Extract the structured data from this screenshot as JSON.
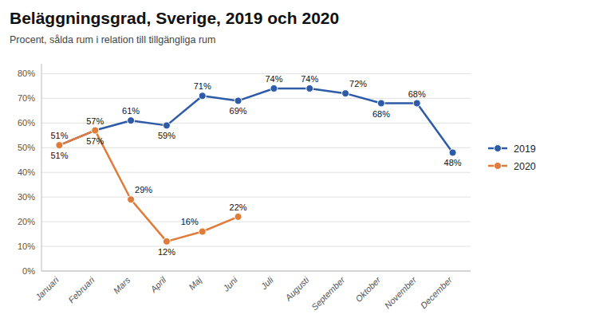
{
  "chart_data": {
    "type": "line",
    "title": "Beläggningsgrad, Sverige, 2019 och 2020",
    "subtitle": "Procent, sålda rum i relation till tillgängliga rum",
    "categories": [
      "Januari",
      "Februari",
      "Mars",
      "April",
      "Maj",
      "Juni",
      "Juli",
      "Augusti",
      "September",
      "Oktober",
      "November",
      "December"
    ],
    "series": [
      {
        "name": "2019",
        "color": "#2E5BA8",
        "values": [
          51,
          57,
          61,
          59,
          71,
          69,
          74,
          74,
          72,
          68,
          68,
          48
        ],
        "value_labels": [
          "51%",
          "57%",
          "61%",
          "59%",
          "71%",
          "69%",
          "74%",
          "74%",
          "72%",
          "68%",
          "68%",
          "48%"
        ]
      },
      {
        "name": "2020",
        "color": "#E07B39",
        "values": [
          51,
          57,
          29,
          12,
          16,
          22,
          null,
          null,
          null,
          null,
          null,
          null
        ],
        "value_labels": [
          "51%",
          "57%",
          "29%",
          "12%",
          "16%",
          "22%",
          null,
          null,
          null,
          null,
          null,
          null
        ]
      }
    ],
    "ylim": [
      0,
      84
    ],
    "yticks": [
      {
        "value": 0,
        "label": "0%"
      },
      {
        "value": 10,
        "label": "10%"
      },
      {
        "value": 20,
        "label": "20%"
      },
      {
        "value": 30,
        "label": "30%"
      },
      {
        "value": 40,
        "label": "40%"
      },
      {
        "value": 50,
        "label": "50%"
      },
      {
        "value": 60,
        "label": "60%"
      },
      {
        "value": 70,
        "label": "70%"
      },
      {
        "value": 80,
        "label": "80%"
      }
    ],
    "grid": true,
    "legend": "right",
    "data_labels": true,
    "marker": "circle"
  }
}
